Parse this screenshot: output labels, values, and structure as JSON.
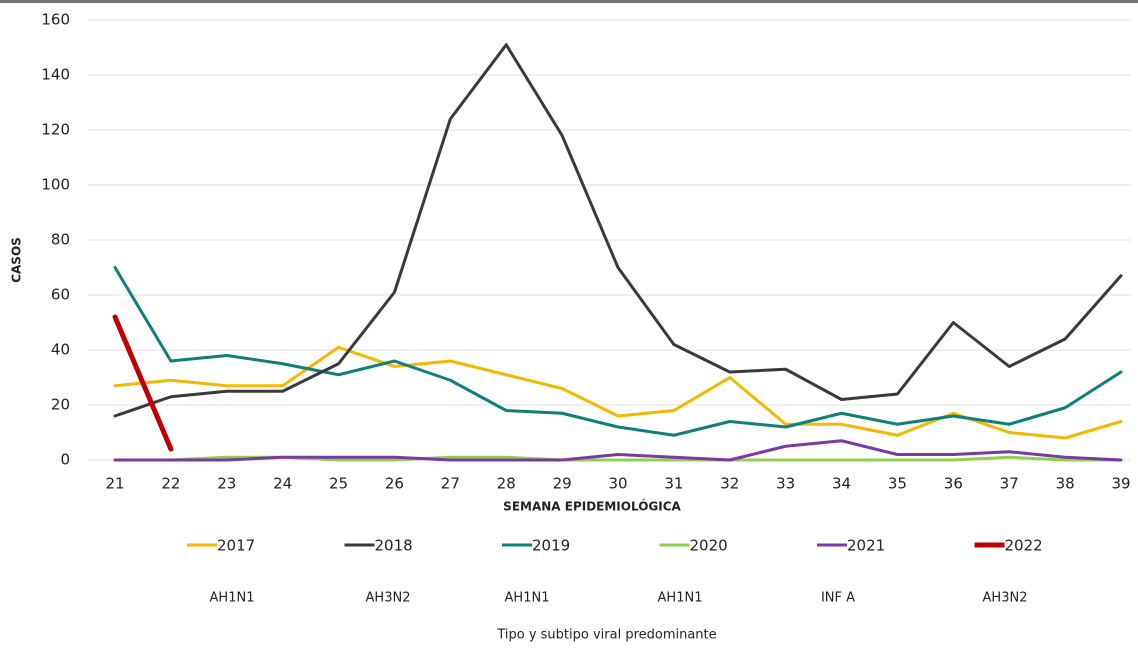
{
  "chart_data": {
    "type": "line",
    "x": [
      21,
      22,
      23,
      24,
      25,
      26,
      27,
      28,
      29,
      30,
      31,
      32,
      33,
      34,
      35,
      36,
      37,
      38,
      39
    ],
    "xlim": [
      21,
      39
    ],
    "xticks": [
      21,
      22,
      23,
      24,
      25,
      26,
      27,
      28,
      29,
      30,
      31,
      32,
      33,
      34,
      35,
      36,
      37,
      38,
      39
    ],
    "ylim": [
      0,
      160
    ],
    "yticks": [
      0,
      20,
      40,
      60,
      80,
      100,
      120,
      140,
      160
    ],
    "grid": true,
    "xlabel": "SEMANA EPIDEMIOLÓGICA",
    "ylabel": "CASOS",
    "series": [
      {
        "name": "2017",
        "color": "#f5b800",
        "values": [
          27,
          29,
          27,
          27,
          41,
          34,
          36,
          31,
          26,
          16,
          18,
          30,
          13,
          13,
          9,
          17,
          10,
          8,
          14
        ]
      },
      {
        "name": "2018",
        "color": "#3a3a3a",
        "values": [
          16,
          23,
          25,
          25,
          35,
          61,
          124,
          151,
          118,
          70,
          42,
          32,
          33,
          22,
          24,
          50,
          34,
          44,
          67
        ]
      },
      {
        "name": "2019",
        "color": "#0e7f7a",
        "values": [
          70,
          36,
          38,
          35,
          31,
          36,
          29,
          18,
          17,
          12,
          9,
          14,
          12,
          17,
          13,
          16,
          13,
          19,
          32
        ]
      },
      {
        "name": "2020",
        "color": "#8fd14f",
        "values": [
          0,
          0,
          1,
          1,
          0,
          0,
          1,
          1,
          0,
          0,
          0,
          0,
          0,
          0,
          0,
          0,
          1,
          0,
          0
        ]
      },
      {
        "name": "2021",
        "color": "#7a3aa0",
        "values": [
          0,
          0,
          0,
          1,
          1,
          1,
          0,
          0,
          0,
          2,
          1,
          0,
          5,
          7,
          2,
          2,
          3,
          1,
          0
        ]
      },
      {
        "name": "2022",
        "color": "#c00000",
        "values": [
          52,
          4,
          null,
          null,
          null,
          null,
          null,
          null,
          null,
          null,
          null,
          null,
          null,
          null,
          null,
          null,
          null,
          null,
          null
        ]
      }
    ],
    "annotations": [
      "AH1N1",
      "AH3N2",
      "AH1N1",
      "AH1N1",
      "INF A",
      "AH3N2"
    ],
    "caption": "Tipo y subtipo viral predominante"
  }
}
